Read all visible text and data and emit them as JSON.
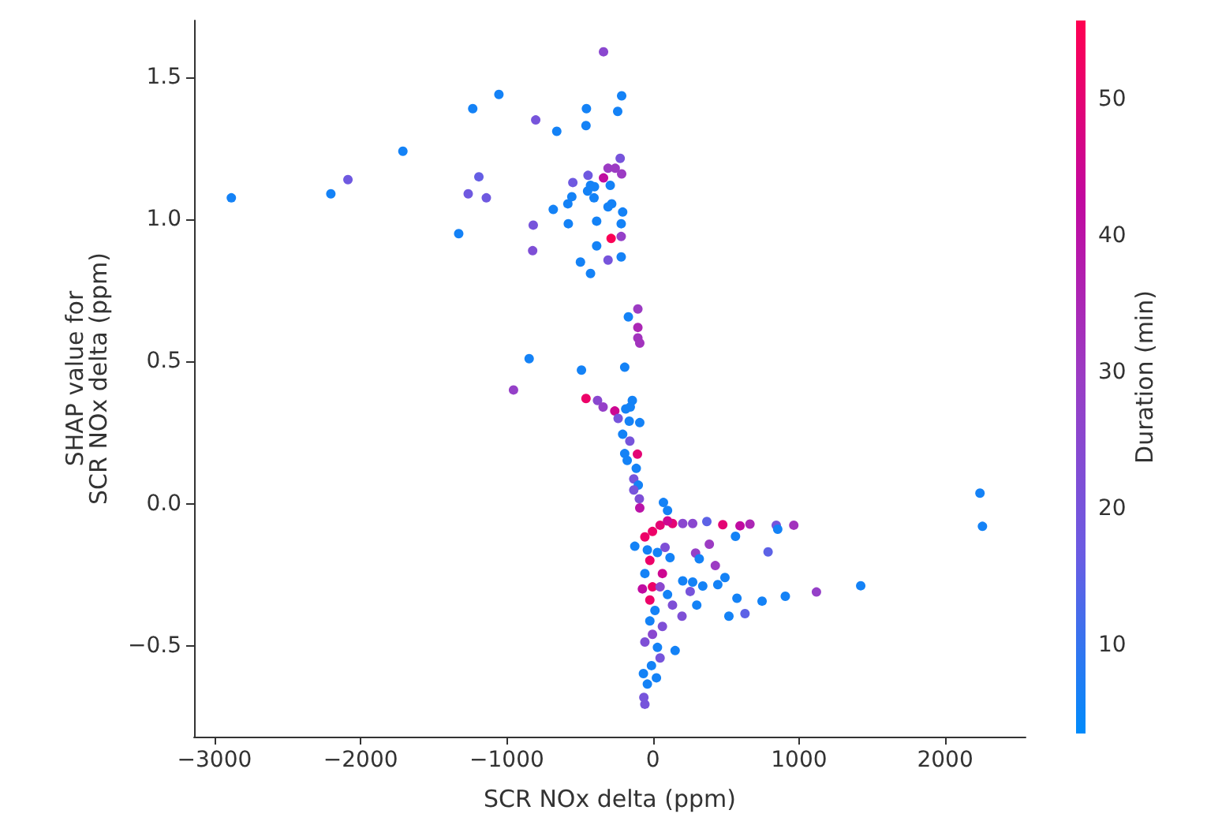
{
  "chart_data": {
    "type": "scatter",
    "xlabel": "SCR NOx delta (ppm)",
    "ylabel": "SHAP value for\nSCR NOx delta (ppm)",
    "clabel": "Duration (min)",
    "xlim": [
      -3140,
      2550
    ],
    "xticks": [
      -3000,
      -2000,
      -1000,
      0,
      1000,
      2000
    ],
    "ylim": [
      -0.82,
      1.7
    ],
    "yticks": [
      -0.5,
      {
        "value": 0,
        "label": "0.0"
      },
      0.5,
      {
        "value": 1,
        "label": "1.0"
      },
      1.5
    ],
    "clim": [
      3.5,
      55.8
    ],
    "cticks": [
      10,
      20,
      30,
      40,
      50
    ],
    "marker": "circle",
    "x": [
      -2885,
      -2204,
      -2087,
      -1711,
      -1329,
      -1264,
      -1233,
      -1191,
      -1140,
      -1054,
      -847,
      -802,
      -819,
      -823,
      -658,
      -682,
      -579,
      -582,
      -555,
      -548,
      -496,
      -489,
      -455,
      -458,
      -444,
      -447,
      -427,
      -400,
      -403,
      -385,
      -385,
      -427,
      -338,
      -338,
      -307,
      -258,
      -214,
      -224,
      -292,
      -282,
      -307,
      -207,
      -217,
      -286,
      -217,
      -307,
      -217,
      -214,
      -241,
      -103,
      -168,
      -103,
      -103,
      -90,
      -193,
      -954,
      -458,
      -379,
      -341,
      -261,
      -141,
      -155,
      -186,
      -238,
      -162,
      -90,
      -207,
      -158,
      -106,
      -193,
      -176,
      -114,
      -131,
      -100,
      -131,
      -93,
      -90,
      72,
      100,
      134,
      204,
      272,
      369,
      478,
      596,
      664,
      844,
      964,
      565,
      854,
      386,
      292,
      788,
      317,
      427,
      493,
      444,
      341,
      272,
      204,
      575,
      747,
      906,
      1119,
      1422,
      630,
      520,
      300,
      199,
      152,
      -3,
      -55,
      49,
      100,
      -124,
      -38,
      31,
      83,
      117,
      -21,
      65,
      -55,
      -3,
      -72,
      49,
      -21,
      100,
      134,
      14,
      -21,
      65,
      -3,
      -55,
      31,
      49,
      -10,
      -65,
      24,
      -38,
      -62,
      -55,
      255,
      2238,
      2255
    ],
    "values": [
      1.076,
      1.09,
      1.14,
      1.24,
      0.95,
      1.09,
      1.39,
      1.15,
      1.076,
      1.44,
      0.51,
      1.35,
      0.98,
      0.89,
      1.31,
      1.035,
      0.985,
      1.055,
      1.08,
      1.13,
      0.85,
      0.47,
      1.39,
      1.33,
      1.155,
      1.1,
      1.12,
      1.115,
      1.076,
      0.994,
      0.907,
      0.81,
      1.59,
      1.146,
      1.18,
      1.18,
      1.16,
      1.215,
      1.12,
      1.055,
      1.044,
      1.026,
      0.985,
      0.933,
      0.94,
      0.857,
      0.868,
      1.435,
      1.38,
      0.685,
      0.657,
      0.62,
      0.583,
      0.565,
      0.48,
      0.4,
      0.37,
      0.363,
      0.34,
      0.326,
      0.363,
      0.34,
      0.333,
      0.3,
      0.29,
      0.285,
      0.244,
      0.22,
      0.174,
      0.176,
      0.152,
      0.124,
      0.087,
      0.065,
      0.048,
      0.017,
      -0.015,
      0.004,
      -0.024,
      -0.07,
      -0.07,
      -0.07,
      -0.063,
      -0.074,
      -0.078,
      -0.072,
      -0.076,
      -0.076,
      -0.115,
      -0.09,
      -0.143,
      -0.174,
      -0.17,
      -0.194,
      -0.218,
      -0.26,
      -0.285,
      -0.29,
      -0.276,
      -0.272,
      -0.333,
      -0.343,
      -0.326,
      -0.311,
      -0.289,
      -0.387,
      -0.396,
      -0.357,
      -0.396,
      -0.517,
      -0.098,
      -0.117,
      -0.076,
      -0.061,
      -0.15,
      -0.163,
      -0.172,
      -0.154,
      -0.19,
      -0.2,
      -0.246,
      -0.246,
      -0.293,
      -0.3,
      -0.293,
      -0.339,
      -0.32,
      -0.357,
      -0.376,
      -0.413,
      -0.432,
      -0.46,
      -0.487,
      -0.506,
      -0.543,
      -0.57,
      -0.598,
      -0.613,
      -0.635,
      -0.682,
      -0.706,
      -0.309,
      0.037,
      -0.08
    ],
    "cvalues": [
      6,
      6,
      18,
      6,
      6,
      18,
      6,
      16,
      18,
      6,
      6,
      20,
      20,
      22,
      6,
      6,
      6,
      6,
      6,
      18,
      6,
      6,
      6,
      6,
      18,
      6,
      6,
      6,
      6,
      6,
      6,
      6,
      25,
      42,
      30,
      30,
      30,
      20,
      6,
      6,
      6,
      6,
      6,
      55,
      28,
      20,
      6,
      6,
      6,
      30,
      6,
      35,
      32,
      32,
      6,
      28,
      52,
      25,
      28,
      45,
      6,
      6,
      6,
      20,
      6,
      6,
      6,
      20,
      50,
      6,
      6,
      6,
      20,
      6,
      20,
      22,
      40,
      6,
      6,
      50,
      25,
      25,
      15,
      50,
      42,
      35,
      20,
      32,
      6,
      6,
      30,
      28,
      15,
      6,
      30,
      6,
      6,
      6,
      6,
      6,
      6,
      6,
      6,
      28,
      6,
      15,
      6,
      6,
      22,
      6,
      52,
      52,
      50,
      45,
      6,
      6,
      6,
      22,
      6,
      52,
      45,
      6,
      52,
      42,
      25,
      52,
      6,
      22,
      6,
      6,
      22,
      25,
      22,
      6,
      20,
      6,
      6,
      6,
      6,
      20,
      20,
      20,
      6,
      6
    ]
  }
}
